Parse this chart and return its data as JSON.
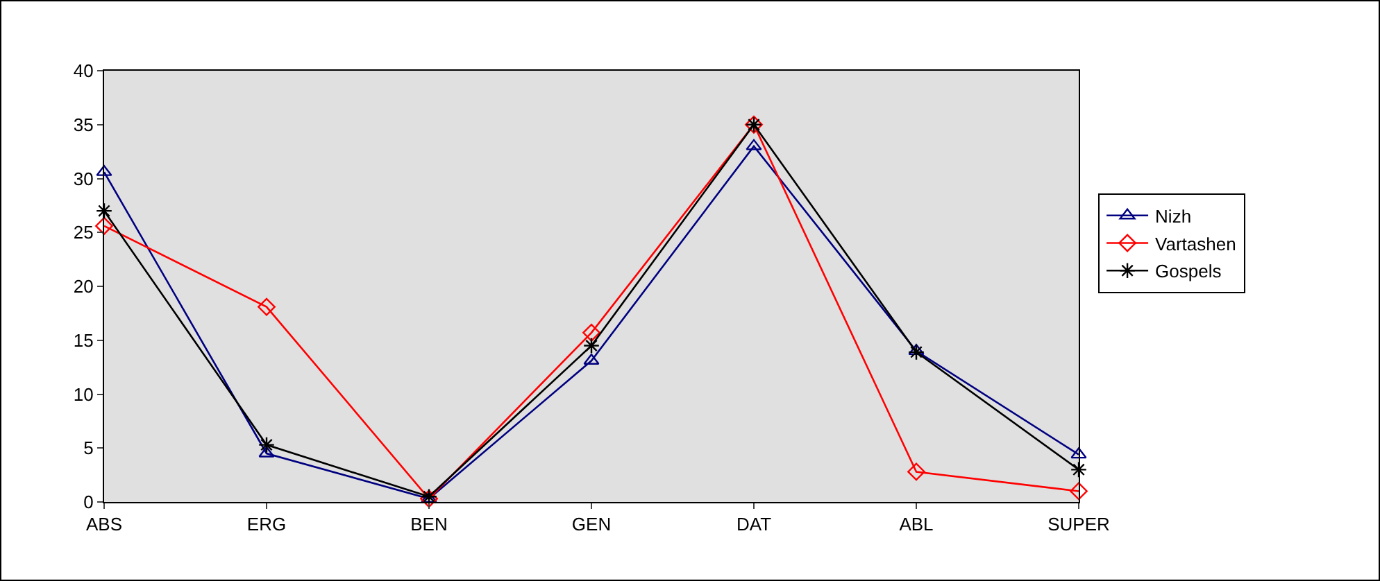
{
  "chart_data": {
    "type": "line",
    "categories": [
      "ABS",
      "ERG",
      "BEN",
      "GEN",
      "DAT",
      "ABL",
      "SUPER"
    ],
    "series": [
      {
        "name": "Nizh",
        "color": "#000080",
        "marker": "triangle",
        "values": [
          30.6,
          4.5,
          0.3,
          13.1,
          33,
          14,
          4.4
        ]
      },
      {
        "name": "Vartashen",
        "color": "#ff0000",
        "marker": "diamond",
        "values": [
          25.6,
          18.1,
          0.3,
          15.7,
          35,
          2.8,
          1
        ]
      },
      {
        "name": "Gospels",
        "color": "#000000",
        "marker": "cross",
        "values": [
          27,
          5.3,
          0.5,
          14.5,
          35,
          13.9,
          3
        ]
      }
    ],
    "ylim": [
      0,
      40
    ],
    "yticks": [
      0,
      5,
      10,
      15,
      20,
      25,
      30,
      35,
      40
    ],
    "grid": false,
    "legend": "right",
    "line_style": "solid"
  }
}
